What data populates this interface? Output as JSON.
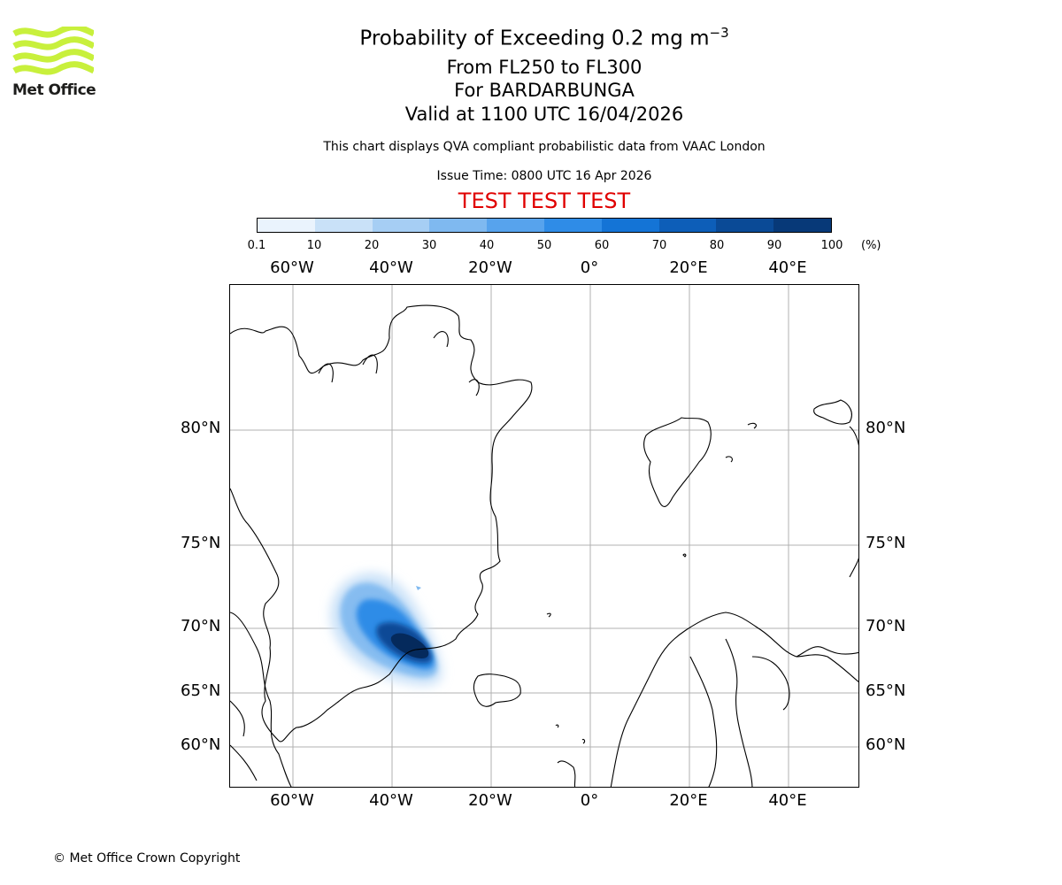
{
  "logo": {
    "text": "Met Office",
    "color": "#c8f03c"
  },
  "title": {
    "main": "Probability of Exceeding 0.2 mg m",
    "exponent": "−3"
  },
  "subtitles": [
    "From FL250 to FL300",
    "For BARDARBUNGA",
    "Valid at 1100 UTC 16/04/2026"
  ],
  "note": "This chart displays QVA compliant probabilistic data from VAAC London",
  "issue_time": "Issue Time: 0800 UTC 16 Apr 2026",
  "test_banner": "TEST TEST TEST",
  "colorbar": {
    "labels": [
      "0.1",
      "10",
      "20",
      "30",
      "40",
      "50",
      "60",
      "70",
      "80",
      "90",
      "100"
    ],
    "unit": "(%)",
    "colors": [
      "#eaf3fd",
      "#c9e1f8",
      "#a6cef4",
      "#7fb9f0",
      "#57a3ed",
      "#2f8ce7",
      "#1474d6",
      "#0d5eb8",
      "#0a4a96",
      "#073978",
      "#052a5c"
    ]
  },
  "axes": {
    "lon_labels": [
      "60°W",
      "40°W",
      "20°W",
      "0°",
      "20°E",
      "40°E"
    ],
    "lat_labels": [
      "80°N",
      "75°N",
      "70°N",
      "65°N",
      "60°N"
    ],
    "grid_color": "#b0b0b0"
  },
  "copyright": "© Met Office Crown Copyright"
}
